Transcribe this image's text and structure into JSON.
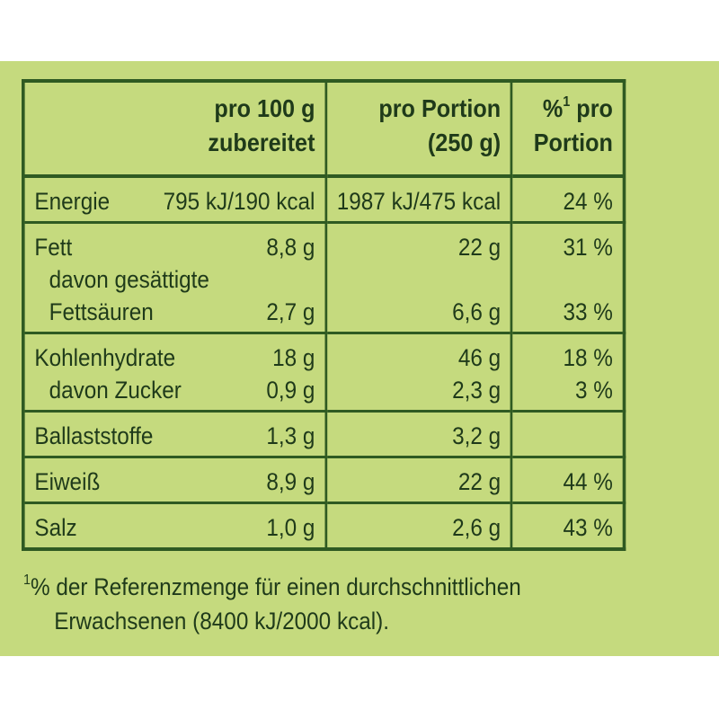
{
  "header": {
    "col1_line1": "pro 100 g",
    "col1_line2": "zubereitet",
    "col2_line1": "pro Portion",
    "col2_line2": "(250 g)",
    "col3_pct": "%",
    "col3_sup": "1",
    "col3_line1_rest": " pro",
    "col3_line2": "Portion"
  },
  "rows": {
    "energie": {
      "label": "Energie",
      "per100": "795 kJ/190 kcal",
      "portion": "1987 kJ/475 kcal",
      "pct": "24 %"
    },
    "fett": {
      "label": "Fett",
      "per100": "8,8 g",
      "portion": "22 g",
      "pct": "31 %"
    },
    "gesaettigte": {
      "label_line1": "davon gesättigte",
      "label_line2": "Fettsäuren",
      "per100": "2,7 g",
      "portion": "6,6 g",
      "pct": "33 %"
    },
    "kohlenhydrate": {
      "label": "Kohlenhydrate",
      "per100": "18 g",
      "portion": "46 g",
      "pct": "18 %"
    },
    "zucker": {
      "label": "davon Zucker",
      "per100": "0,9 g",
      "portion": "2,3 g",
      "pct": "3 %"
    },
    "ballaststoffe": {
      "label": "Ballaststoffe",
      "per100": "1,3 g",
      "portion": "3,2 g",
      "pct": ""
    },
    "eiweiss": {
      "label": "Eiweiß",
      "per100": "8,9 g",
      "portion": "22 g",
      "pct": "44 %"
    },
    "salz": {
      "label": "Salz",
      "per100": "1,0 g",
      "portion": "2,6 g",
      "pct": "43 %"
    }
  },
  "footnote": {
    "sup": "1",
    "line1": "% der Referenzmenge für einen durchschnittlichen",
    "line2": "Erwachsenen (8400 kJ/2000 kcal)."
  },
  "colors": {
    "background": "#c5da7e",
    "border": "#2f5a22",
    "text": "#1f3a1a"
  }
}
